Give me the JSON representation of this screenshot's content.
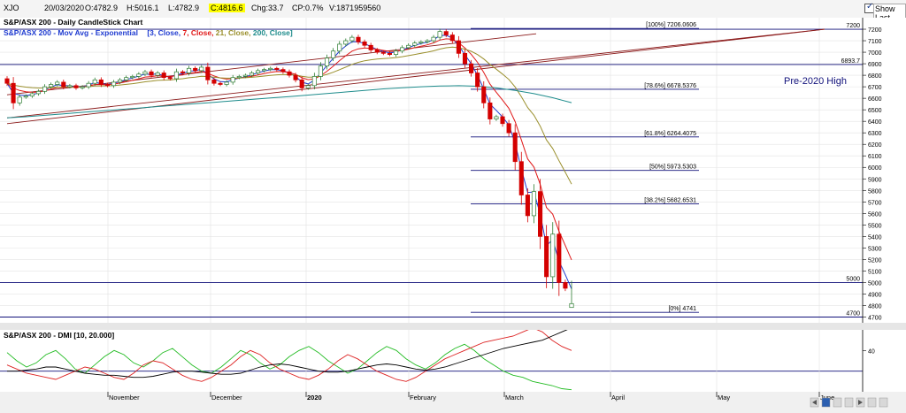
{
  "topbar": {
    "symbol": "XJO",
    "date": "20/03/2020",
    "open": "O:4782.9",
    "high": "H:5016.1",
    "low": "L:4782.9",
    "close": "C:4816.6",
    "change": "Chg:33.7",
    "change_pct": "CP:0.7%",
    "volume": "V:1871959560",
    "show_last": "Show Last",
    "show_last_checked": true
  },
  "price_panel": {
    "title": "S&P/ASX 200 - Daily CandleStick Chart",
    "ma_title": "S&P/ASX 200 - Mov Avg - Exponential",
    "ma_params_open": "[3, Close, ",
    "ma_params_7": "7, Close, ",
    "ma_params_21": "21, Close, ",
    "ma_params_200": "200, Close]",
    "annotation": "Pre-2020 High",
    "level_labels": {
      "top": "7200",
      "prev_high": "6893.7",
      "mid": "5000",
      "bottom": "4700"
    }
  },
  "dmi_panel": {
    "title": "S&P/ASX 200 - DMI [10, 20.000]",
    "tick_label": "40"
  },
  "x_axis": {
    "months": [
      {
        "label": "November",
        "bold": false
      },
      {
        "label": "December",
        "bold": false
      },
      {
        "label": "2020",
        "bold": true
      },
      {
        "label": "February",
        "bold": false
      },
      {
        "label": "March",
        "bold": false
      },
      {
        "label": "April",
        "bold": false
      },
      {
        "label": "May",
        "bold": false
      },
      {
        "label": "June",
        "bold": false
      }
    ]
  },
  "colors": {
    "bull": "#2e7d32",
    "bear": "#d40000",
    "ema3": "#1f3bd0",
    "ema7": "#e01818",
    "ema21": "#9a8f2c",
    "ema200": "#1e8c8c",
    "trendline": "#8b1a1a",
    "level": "#10107a",
    "dmi_plus": "#22bb22",
    "dmi_minus": "#dd2222",
    "adx": "#000000"
  },
  "chart_data": [
    {
      "type": "candlestick",
      "title": "S&P/ASX 200 - Daily CandleStick Chart",
      "ylim": [
        4650,
        7300
      ],
      "y_ticks": [
        4700,
        4800,
        4900,
        5000,
        5100,
        5200,
        5300,
        5400,
        5500,
        5600,
        5700,
        5800,
        5900,
        6000,
        6100,
        6200,
        6300,
        6400,
        6500,
        6600,
        6700,
        6800,
        6900,
        7000,
        7100,
        7200
      ],
      "x_months": [
        "November",
        "December",
        "2020",
        "February",
        "March",
        "April",
        "May",
        "June"
      ],
      "last_bar": {
        "date": "20/03/2020",
        "open": 4782.9,
        "high": 5016.1,
        "low": 4782.9,
        "close": 4816.6
      },
      "closes": [
        6730,
        6560,
        6610,
        6620,
        6640,
        6660,
        6700,
        6720,
        6740,
        6700,
        6710,
        6690,
        6700,
        6730,
        6760,
        6720,
        6710,
        6740,
        6760,
        6780,
        6790,
        6810,
        6830,
        6800,
        6820,
        6780,
        6770,
        6830,
        6820,
        6860,
        6840,
        6870,
        6760,
        6730,
        6720,
        6740,
        6780,
        6790,
        6800,
        6820,
        6840,
        6850,
        6860,
        6850,
        6830,
        6800,
        6760,
        6690,
        6710,
        6790,
        6880,
        6950,
        7010,
        7070,
        7100,
        7130,
        7090,
        7060,
        7020,
        7000,
        6990,
        6980,
        7010,
        7040,
        7060,
        7080,
        7090,
        7100,
        7130,
        7180,
        7150,
        7100,
        6990,
        6900,
        6820,
        6700,
        6560,
        6420,
        6440,
        6380,
        6300,
        6050,
        5760,
        5580,
        5790,
        5400,
        5050,
        5420,
        5000,
        4950,
        4820
      ],
      "ema_series": [
        {
          "name": "EMA 3",
          "period": 3
        },
        {
          "name": "EMA 7",
          "period": 7
        },
        {
          "name": "EMA 21",
          "period": 21
        },
        {
          "name": "EMA 200",
          "period": 200,
          "values": [
            6430,
            6440,
            6452,
            6465,
            6478,
            6490,
            6503,
            6515,
            6528,
            6540,
            6553,
            6565,
            6578,
            6590,
            6603,
            6615,
            6628,
            6641,
            6655,
            6668,
            6682,
            6692,
            6700,
            6706,
            6709,
            6705,
            6690,
            6668,
            6640,
            6605,
            6562
          ]
        }
      ],
      "fibonacci": [
        {
          "label": "[100%] 7206.0606",
          "value": 7206.0606
        },
        {
          "label": "[78.6%] 6678.5376",
          "value": 6678.5376
        },
        {
          "label": "[61.8%] 6264.4075",
          "value": 6264.4075
        },
        {
          "label": "[50%] 5973.5303",
          "value": 5973.5303
        },
        {
          "label": "[38.2%] 5682.6531",
          "value": 5682.6531
        },
        {
          "label": "[0%] 4741",
          "value": 4741
        }
      ],
      "horizontal_levels": [
        {
          "label": "7200",
          "value": 7200
        },
        {
          "label": "6893.7",
          "value": 6893.7
        },
        {
          "label": "5000",
          "value": 5000
        },
        {
          "label": "4700",
          "value": 4700
        }
      ],
      "trendlines": [
        {
          "from": 6430,
          "to": 7200
        },
        {
          "from": 6380,
          "to": 7200
        },
        {
          "from": 6630,
          "to": 7160
        }
      ]
    },
    {
      "type": "line",
      "title": "S&P/ASX 200 - DMI [10, 20.000]",
      "ylim": [
        0,
        60
      ],
      "y_ticks": [
        40
      ],
      "series": [
        {
          "name": "DI+",
          "values": [
            38,
            30,
            24,
            28,
            36,
            40,
            32,
            22,
            18,
            26,
            34,
            40,
            36,
            28,
            24,
            30,
            38,
            42,
            34,
            26,
            20,
            18,
            24,
            32,
            40,
            36,
            28,
            22,
            26,
            34,
            40,
            44,
            38,
            30,
            24,
            18,
            22,
            30,
            38,
            44,
            40,
            32,
            26,
            22,
            28,
            36,
            42,
            46,
            40,
            32,
            26,
            20,
            16,
            14,
            10,
            8,
            6,
            3,
            2
          ]
        },
        {
          "name": "DI-",
          "values": [
            26,
            22,
            18,
            16,
            14,
            12,
            16,
            20,
            24,
            22,
            18,
            14,
            12,
            18,
            26,
            30,
            28,
            22,
            16,
            12,
            10,
            14,
            20,
            26,
            34,
            40,
            36,
            28,
            22,
            18,
            14,
            12,
            16,
            22,
            30,
            36,
            32,
            26,
            20,
            16,
            12,
            10,
            14,
            20,
            26,
            32,
            36,
            40,
            44,
            48,
            50,
            52,
            54,
            58,
            62,
            58,
            50,
            44,
            40
          ]
        },
        {
          "name": "ADX",
          "values": [
            20,
            20,
            21,
            22,
            24,
            24,
            22,
            20,
            18,
            17,
            16,
            16,
            15,
            14,
            14,
            15,
            17,
            19,
            20,
            20,
            19,
            18,
            17,
            17,
            18,
            21,
            24,
            26,
            27,
            26,
            24,
            22,
            20,
            19,
            19,
            20,
            22,
            24,
            26,
            27,
            26,
            24,
            22,
            21,
            22,
            24,
            27,
            30,
            33,
            36,
            39,
            42,
            44,
            46,
            48,
            50,
            54,
            58,
            62
          ]
        }
      ]
    }
  ]
}
